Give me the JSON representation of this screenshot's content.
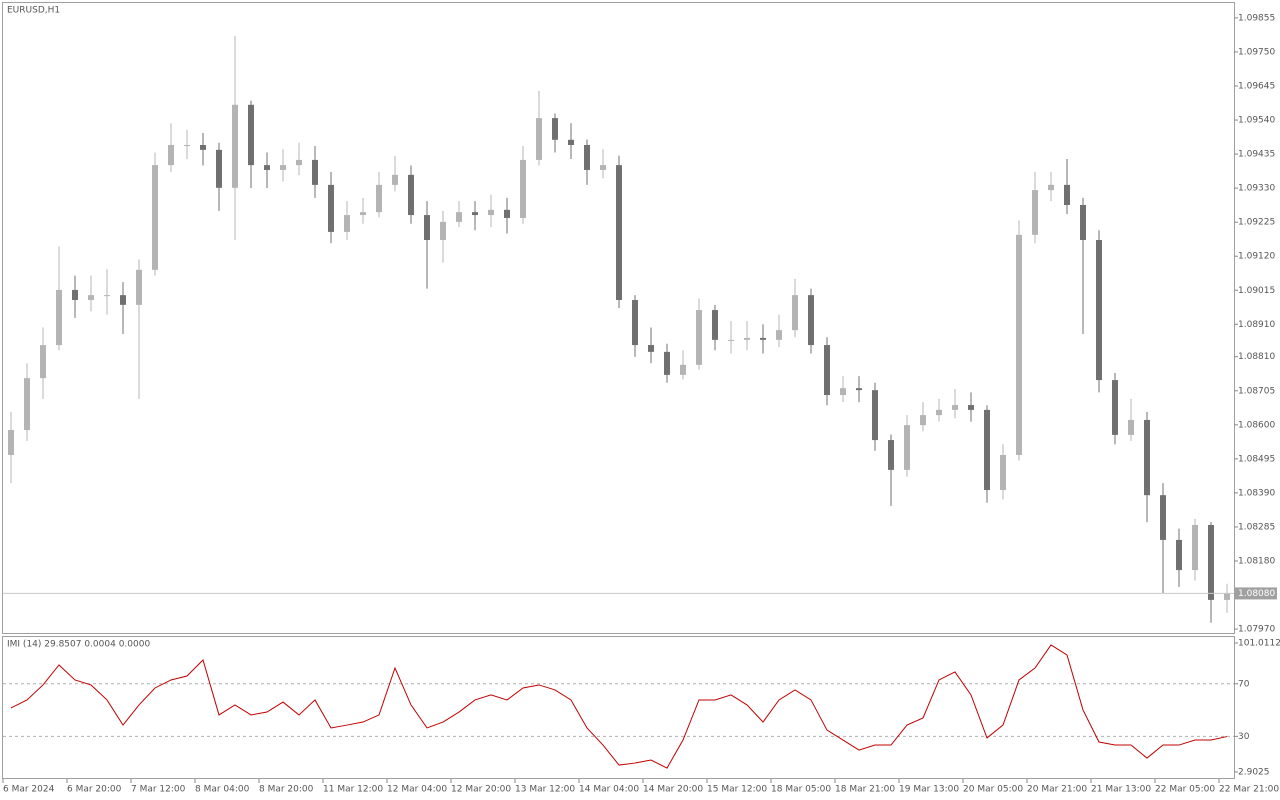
{
  "chart_data": [
    {
      "type": "candlestick",
      "title": "EURUSD,H1",
      "categories": [
        "6 Mar 2024",
        null,
        null,
        null,
        "6 Mar 20:00",
        null,
        null,
        null,
        "7 Mar 12:00",
        null,
        null,
        null,
        "8 Mar 04:00",
        null,
        null,
        null,
        "8 Mar 20:00",
        null,
        null,
        null,
        "11 Mar 12:00",
        null,
        null,
        null,
        "12 Mar 04:00",
        null,
        null,
        null,
        "12 Mar 20:00",
        null,
        null,
        null,
        "13 Mar 12:00",
        null,
        null,
        null,
        "14 Mar 04:00",
        null,
        null,
        null,
        "14 Mar 20:00",
        null,
        null,
        null,
        "15 Mar 12:00",
        null,
        null,
        null,
        "18 Mar 05:00",
        null,
        null,
        null,
        "18 Mar 21:00",
        null,
        null,
        null,
        "19 Mar 13:00",
        null,
        null,
        null,
        "20 Mar 05:00",
        null,
        null,
        null,
        "20 Mar 21:00",
        null,
        null,
        null,
        "21 Mar 13:00",
        null,
        null,
        null,
        "22 Mar 05:00",
        null,
        null,
        null,
        "22 Mar 21:00"
      ],
      "open": [
        1.08507,
        1.08584,
        1.08744,
        1.08846,
        1.09016,
        1.08985,
        1.09,
        1.09,
        1.0897,
        1.09078,
        1.09401,
        1.09463,
        1.09463,
        1.09448,
        1.09331,
        1.09587,
        1.09401,
        1.09386,
        1.09401,
        1.09417,
        1.0934,
        1.09195,
        1.09247,
        1.09256,
        1.0934,
        1.09371,
        1.09247,
        1.0917,
        1.09226,
        1.09256,
        1.09247,
        1.09263,
        1.09238,
        1.09417,
        1.09546,
        1.09479,
        1.09463,
        1.09386,
        1.09401,
        1.08985,
        1.08846,
        1.08825,
        1.08754,
        1.08785,
        1.08954,
        1.08862,
        1.08862,
        1.08868,
        1.08862,
        1.08892,
        1.09,
        1.08846,
        1.08692,
        1.08713,
        1.08707,
        1.08553,
        1.08461,
        1.08599,
        1.0863,
        1.08646,
        1.08661,
        1.08646,
        1.08399,
        1.08507,
        1.09186,
        1.09324,
        1.0934,
        1.09278,
        1.0917,
        1.08738,
        1.08569,
        1.08615,
        1.08383,
        1.08245,
        1.08152,
        1.08291,
        1.0806
      ],
      "high": [
        1.0864,
        1.0879,
        1.089,
        1.0915,
        1.0906,
        1.0906,
        1.0908,
        1.0904,
        1.0911,
        1.0944,
        1.0953,
        1.0951,
        1.095,
        1.0947,
        1.098,
        1.096,
        1.0944,
        1.0945,
        1.0947,
        1.0946,
        1.0938,
        1.0929,
        1.093,
        1.0938,
        1.0943,
        1.094,
        1.0929,
        1.0926,
        1.0929,
        1.0929,
        1.0931,
        1.093,
        1.0946,
        1.0963,
        1.0956,
        1.0953,
        1.0948,
        1.0945,
        1.0943,
        1.09,
        1.089,
        1.0885,
        1.0883,
        1.0899,
        1.0897,
        1.0892,
        1.0892,
        1.0891,
        1.0894,
        1.0905,
        1.0902,
        1.0887,
        1.0875,
        1.0875,
        1.0873,
        1.0857,
        1.0863,
        1.0867,
        1.0868,
        1.0871,
        1.087,
        1.0866,
        1.0854,
        1.0923,
        1.0938,
        1.0938,
        1.0942,
        1.093,
        1.092,
        1.0876,
        1.0868,
        1.0864,
        1.0842,
        1.0828,
        1.0831,
        1.083,
        1.0811
      ],
      "low": [
        1.0842,
        1.0855,
        1.0868,
        1.0883,
        1.0893,
        1.0895,
        1.0894,
        1.0888,
        1.0868,
        1.0906,
        1.0938,
        1.0942,
        1.094,
        1.0926,
        1.0917,
        1.0933,
        1.0933,
        1.0935,
        1.0937,
        1.093,
        1.0916,
        1.0917,
        1.0922,
        1.0924,
        1.0932,
        1.0922,
        1.0902,
        1.091,
        1.0921,
        1.092,
        1.0921,
        1.0919,
        1.0922,
        1.094,
        1.0944,
        1.0942,
        1.0934,
        1.0936,
        1.0896,
        1.0881,
        1.0879,
        1.0873,
        1.0874,
        1.0877,
        1.0883,
        1.0882,
        1.0883,
        1.0882,
        1.0884,
        1.0887,
        1.0882,
        1.0866,
        1.0867,
        1.0867,
        1.0852,
        1.0835,
        1.0844,
        1.0858,
        1.0861,
        1.0862,
        1.0861,
        1.0836,
        1.0837,
        1.0849,
        1.0916,
        1.0929,
        1.0925,
        1.0888,
        1.087,
        1.0854,
        1.0855,
        1.083,
        1.0808,
        1.081,
        1.0812,
        1.0799,
        1.0802
      ],
      "close": [
        1.08584,
        1.08744,
        1.08846,
        1.09016,
        1.08985,
        1.09,
        1.09,
        1.0897,
        1.09078,
        1.09401,
        1.09463,
        1.09463,
        1.09448,
        1.09331,
        1.09587,
        1.09401,
        1.09386,
        1.09401,
        1.09417,
        1.0934,
        1.09195,
        1.09247,
        1.09256,
        1.0934,
        1.09371,
        1.09247,
        1.0917,
        1.09226,
        1.09256,
        1.09247,
        1.09263,
        1.09238,
        1.09417,
        1.09546,
        1.09479,
        1.09463,
        1.09386,
        1.09401,
        1.08985,
        1.08846,
        1.08825,
        1.08754,
        1.08785,
        1.08954,
        1.08862,
        1.08862,
        1.08868,
        1.08862,
        1.08892,
        1.09,
        1.08846,
        1.08692,
        1.08713,
        1.08707,
        1.08553,
        1.08461,
        1.08599,
        1.0863,
        1.08646,
        1.08661,
        1.08646,
        1.08399,
        1.08507,
        1.09186,
        1.09324,
        1.0934,
        1.09278,
        1.0917,
        1.08738,
        1.08569,
        1.08615,
        1.08383,
        1.08245,
        1.08152,
        1.08291,
        1.0806,
        1.0808
      ],
      "up_color": "#b4b4b4",
      "down_color": "#707070",
      "ylim": [
        1.07961,
        1.09901
      ],
      "yticks": [
        1.09855,
        {
          "value": 1.0975,
          "label": "1.09750"
        },
        1.09645,
        {
          "value": 1.0954,
          "label": "1.09540"
        },
        1.09435,
        {
          "value": 1.0933,
          "label": "1.09330"
        },
        1.09225,
        {
          "value": 1.0912,
          "label": "1.09120"
        },
        1.09015,
        {
          "value": 1.0891,
          "label": "1.08910"
        },
        {
          "value": 1.0881,
          "label": "1.08810"
        },
        1.08705,
        {
          "value": 1.086,
          "label": "1.08600"
        },
        1.08495,
        {
          "value": 1.0839,
          "label": "1.08390"
        },
        1.08285,
        {
          "value": 1.0818,
          "label": "1.08180"
        },
        {
          "value": 1.0797,
          "label": "1.07970"
        }
      ],
      "current_price": {
        "value": 1.0808,
        "label": "1.08080"
      }
    },
    {
      "type": "line",
      "title": "IMI (14) 29.8507 0.0004 0.0000",
      "color": "#c00000",
      "values": [
        51.6,
        57.7,
        69.1,
        84.3,
        72.9,
        69.1,
        57.7,
        38.6,
        53.9,
        66.8,
        72.9,
        75.9,
        88.1,
        46.3,
        53.9,
        46.3,
        48.5,
        56.1,
        46.3,
        57.7,
        36.4,
        38.6,
        40.9,
        46.3,
        82.0,
        53.9,
        36.4,
        40.9,
        48.5,
        57.7,
        61.5,
        57.7,
        66.8,
        69.1,
        65.3,
        57.7,
        36.4,
        23.4,
        8.2,
        9.7,
        12.0,
        5.9,
        27.2,
        57.7,
        57.7,
        61.5,
        53.9,
        40.9,
        57.7,
        65.3,
        57.7,
        34.8,
        27.2,
        19.6,
        23.4,
        23.4,
        38.6,
        44.0,
        72.9,
        79.0,
        61.5,
        28.8,
        38.6,
        72.9,
        82.0,
        99.5,
        91.9,
        50.1,
        25.7,
        23.4,
        23.4,
        13.5,
        23.4,
        23.4,
        27.2,
        27.2,
        29.8507
      ],
      "ylim": [
        -1.66,
        106.33
      ],
      "yticks": [
        101.0112,
        70,
        30,
        2.9025
      ],
      "levels": [
        70,
        30
      ]
    }
  ]
}
